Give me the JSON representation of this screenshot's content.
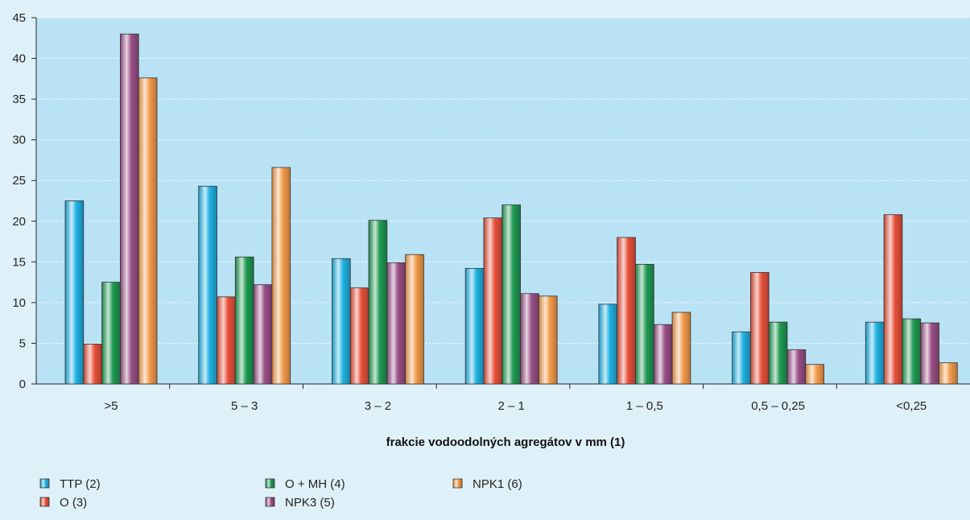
{
  "chart_data": {
    "type": "bar",
    "title": "",
    "xlabel": "frakcie vodoodolných agregátov v mm (1)",
    "ylabel": "",
    "ylim": [
      0,
      45
    ],
    "yticks": [
      0,
      5,
      10,
      15,
      20,
      25,
      30,
      35,
      40,
      45
    ],
    "grid": true,
    "legend_position": "bottom-left",
    "categories": [
      ">5",
      "5 – 3",
      "3 – 2",
      "2 – 1",
      "1 – 0,5",
      "0,5 – 0,25",
      "<0,25"
    ],
    "series": [
      {
        "name": "TTP (2)",
        "color": "#1fb1e3",
        "values": [
          22.5,
          24.3,
          15.4,
          14.2,
          9.8,
          6.4,
          7.6
        ]
      },
      {
        "name": "O (3)",
        "color": "#e8503a",
        "values": [
          4.9,
          10.7,
          11.8,
          20.4,
          18.0,
          13.7,
          20.8
        ]
      },
      {
        "name": "O + MH (4)",
        "color": "#1f9a52",
        "values": [
          12.5,
          15.6,
          20.1,
          22.0,
          14.7,
          7.6,
          8.0
        ]
      },
      {
        "name": "NPK3 (5)",
        "color": "#9a4f86",
        "values": [
          43.0,
          12.2,
          14.9,
          11.1,
          7.3,
          4.2,
          7.5
        ]
      },
      {
        "name": "NPK1 (6)",
        "color": "#f49a4a",
        "values": [
          37.6,
          26.6,
          15.9,
          10.8,
          8.8,
          2.4,
          2.6
        ]
      }
    ]
  }
}
